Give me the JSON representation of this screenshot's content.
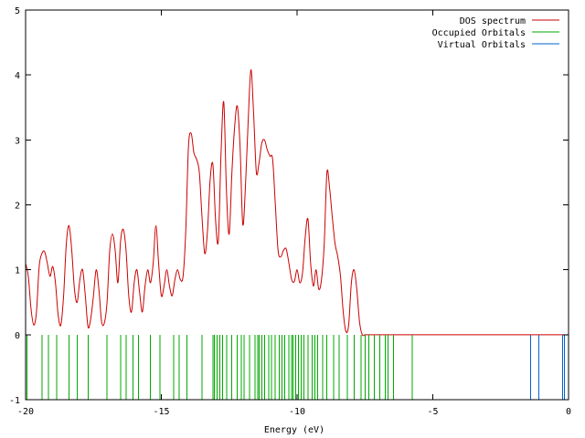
{
  "chart_data": {
    "type": "line",
    "title": "",
    "xlabel": "Energy (eV)",
    "ylabel": "",
    "xlim": [
      -20,
      0
    ],
    "ylim": [
      -1,
      5
    ],
    "x_ticks": [
      -20,
      -15,
      -10,
      -5,
      0
    ],
    "x_tick_labels": [
      "-20",
      "-15",
      "-10",
      "-5",
      "0"
    ],
    "y_ticks": [
      -1,
      0,
      1,
      2,
      3,
      4,
      5
    ],
    "y_tick_labels": [
      "-1",
      "0",
      "1",
      "2",
      "3",
      "4",
      "5"
    ],
    "grid": false,
    "legend_position": "top-right",
    "series": [
      {
        "name": "DOS spectrum",
        "kind": "line",
        "color": "#cc0000",
        "x": [
          -20.0,
          -19.9,
          -19.8,
          -19.7,
          -19.6,
          -19.5,
          -19.4,
          -19.3,
          -19.2,
          -19.1,
          -19.0,
          -18.9,
          -18.8,
          -18.7,
          -18.6,
          -18.5,
          -18.4,
          -18.3,
          -18.2,
          -18.1,
          -18.0,
          -17.9,
          -17.8,
          -17.7,
          -17.6,
          -17.5,
          -17.4,
          -17.3,
          -17.2,
          -17.1,
          -17.0,
          -16.9,
          -16.8,
          -16.7,
          -16.6,
          -16.5,
          -16.4,
          -16.3,
          -16.2,
          -16.1,
          -16.0,
          -15.9,
          -15.8,
          -15.7,
          -15.6,
          -15.5,
          -15.4,
          -15.3,
          -15.2,
          -15.1,
          -15.0,
          -14.9,
          -14.8,
          -14.7,
          -14.6,
          -14.5,
          -14.4,
          -14.3,
          -14.2,
          -14.1,
          -14.0,
          -13.9,
          -13.8,
          -13.7,
          -13.6,
          -13.5,
          -13.4,
          -13.3,
          -13.2,
          -13.1,
          -13.0,
          -12.9,
          -12.8,
          -12.7,
          -12.6,
          -12.5,
          -12.4,
          -12.3,
          -12.2,
          -12.1,
          -12.0,
          -11.9,
          -11.8,
          -11.7,
          -11.6,
          -11.5,
          -11.4,
          -11.3,
          -11.2,
          -11.1,
          -11.0,
          -10.9,
          -10.8,
          -10.7,
          -10.6,
          -10.5,
          -10.4,
          -10.3,
          -10.2,
          -10.1,
          -10.0,
          -9.9,
          -9.8,
          -9.7,
          -9.6,
          -9.5,
          -9.4,
          -9.3,
          -9.2,
          -9.1,
          -9.0,
          -8.9,
          -8.8,
          -8.7,
          -8.6,
          -8.5,
          -8.4,
          -8.3,
          -8.2,
          -8.1,
          -8.0,
          -7.9,
          -7.8,
          -7.7,
          -7.6,
          -7.5,
          -7.4,
          -7.3,
          -7.2,
          -7.1,
          -7.0,
          -6.9,
          -6.8,
          -6.7,
          -6.6,
          -6.5,
          -6.4,
          -6.3,
          -6.2,
          -6.1,
          -6.0,
          -5.9,
          -5.8,
          -5.7,
          -5.6,
          -5.5,
          -5.4,
          -5.0,
          -4.0,
          -3.0,
          -2.0,
          -1.6,
          -1.5,
          -1.4,
          -1.3,
          -1.2,
          -1.1,
          -1.0,
          -0.9,
          -0.8,
          -0.7,
          -0.6,
          -0.5,
          -0.4,
          -0.3,
          -0.2,
          -0.1,
          0.0
        ],
        "y": [
          1.1,
          0.9,
          0.4,
          0.15,
          0.35,
          1.05,
          1.25,
          1.28,
          1.1,
          0.9,
          1.05,
          0.8,
          0.3,
          0.15,
          0.6,
          1.4,
          1.68,
          1.3,
          0.7,
          0.5,
          0.85,
          1.0,
          0.6,
          0.12,
          0.25,
          0.6,
          1.0,
          0.7,
          0.2,
          0.18,
          0.5,
          1.3,
          1.55,
          1.3,
          0.8,
          1.45,
          1.62,
          1.3,
          0.6,
          0.35,
          0.8,
          1.0,
          0.65,
          0.35,
          0.75,
          1.0,
          0.8,
          1.1,
          1.68,
          1.1,
          0.6,
          0.75,
          1.0,
          0.75,
          0.6,
          0.85,
          1.0,
          0.85,
          0.9,
          1.6,
          2.9,
          3.1,
          2.8,
          2.7,
          2.5,
          1.8,
          1.25,
          1.6,
          2.4,
          2.62,
          1.75,
          1.45,
          2.8,
          3.58,
          2.2,
          1.55,
          2.5,
          3.2,
          3.52,
          2.9,
          1.7,
          2.3,
          3.3,
          4.08,
          3.4,
          2.5,
          2.65,
          2.95,
          3.0,
          2.85,
          2.75,
          2.7,
          2.0,
          1.3,
          1.2,
          1.3,
          1.32,
          1.1,
          0.85,
          0.82,
          1.0,
          0.8,
          0.95,
          1.5,
          1.78,
          1.1,
          0.75,
          1.0,
          0.7,
          0.85,
          1.4,
          2.5,
          2.25,
          1.8,
          1.4,
          1.2,
          0.9,
          0.35,
          0.05,
          0.15,
          0.8,
          1.0,
          0.7,
          0.2,
          0.0,
          0.0,
          0.0,
          0.0,
          0.0,
          0.0,
          0.0,
          0.0,
          0.0,
          0.0,
          0.0,
          0.0,
          0.0,
          0.0,
          0.0,
          0.0,
          0.0,
          0.0,
          0.0,
          0.0,
          0.0,
          0.0,
          0.0,
          0.0,
          0.0,
          0.0,
          0.0,
          0.0,
          0.0,
          0.0,
          0.0,
          0.0,
          0.0,
          0.0,
          0.0,
          0.0,
          0.0,
          0.0,
          0.0,
          0.0,
          0.0,
          0.0,
          0.0,
          0.0
        ]
      },
      {
        "name": "Occupied Orbitals",
        "kind": "impulses",
        "color": "#00aa00",
        "base": -1,
        "height": 0,
        "x": [
          -19.95,
          -19.4,
          -19.15,
          -18.85,
          -18.4,
          -18.1,
          -17.7,
          -17.0,
          -16.5,
          -16.3,
          -16.05,
          -15.85,
          -15.4,
          -15.05,
          -14.55,
          -14.35,
          -14.05,
          -13.5,
          -13.1,
          -13.05,
          -12.95,
          -12.85,
          -12.75,
          -12.6,
          -12.4,
          -12.2,
          -12.05,
          -11.95,
          -11.75,
          -11.55,
          -11.45,
          -11.4,
          -11.3,
          -11.2,
          -11.05,
          -10.95,
          -10.8,
          -10.65,
          -10.55,
          -10.45,
          -10.3,
          -10.2,
          -10.15,
          -10.05,
          -9.95,
          -9.85,
          -9.75,
          -9.6,
          -9.45,
          -9.35,
          -9.25,
          -9.05,
          -8.9,
          -8.65,
          -8.45,
          -8.15,
          -7.9,
          -7.65,
          -7.5,
          -7.35,
          -7.15,
          -6.95,
          -6.75,
          -6.65,
          -6.45,
          -5.75
        ]
      },
      {
        "name": "Virtual Orbitals",
        "kind": "impulses",
        "color": "#0066cc",
        "base": -1,
        "height": 0,
        "x": [
          -1.4,
          -1.1,
          -0.22,
          -0.15
        ]
      }
    ]
  }
}
